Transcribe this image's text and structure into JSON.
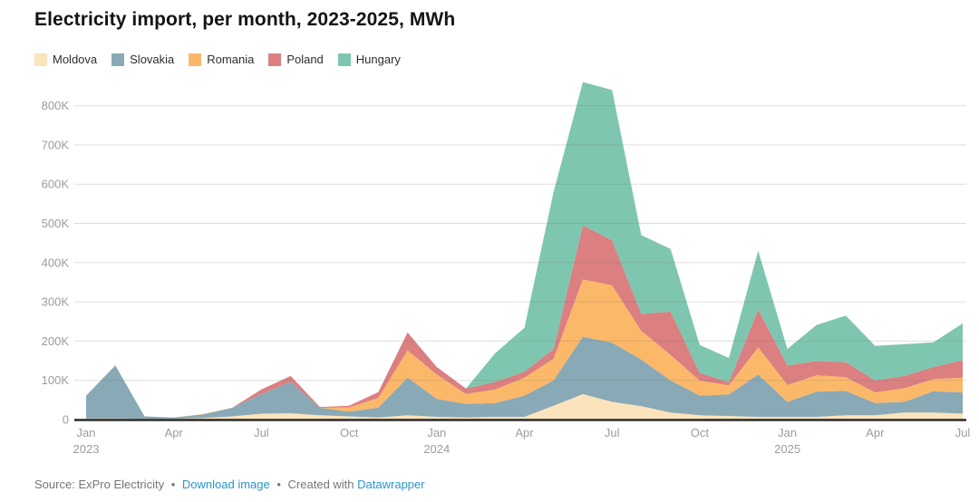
{
  "header": {
    "title": "Electricity import, per month, 2023-2025, MWh"
  },
  "footer": {
    "source_prefix": "Source:",
    "source": "ExPro Electricity",
    "separator": "•",
    "download_label": "Download image",
    "created_prefix": "Created with",
    "brand": "Datawrapper"
  },
  "colors": {
    "title": "#141414",
    "tick_label": "#9c9c9c",
    "grid": "rgba(110,110,110,0.22)",
    "axis": "#2b2b2b",
    "footer_text": "#757575",
    "link": "#2b96cc",
    "background": "#ffffff"
  },
  "chart_data": {
    "type": "area",
    "stacked": true,
    "title": "Electricity import, per month, 2023-2025, MWh",
    "unit": "MWh",
    "grid": true,
    "legend_position": "top-left",
    "ylim": [
      0,
      860000
    ],
    "x": [
      "Jan 2023",
      "Feb 2023",
      "Mar 2023",
      "Apr 2023",
      "May 2023",
      "Jun 2023",
      "Jul 2023",
      "Aug 2023",
      "Sep 2023",
      "Oct 2023",
      "Nov 2023",
      "Dec 2023",
      "Jan 2024",
      "Feb 2024",
      "Mar 2024",
      "Apr 2024",
      "May 2024",
      "Jun 2024",
      "Jul 2024",
      "Aug 2024",
      "Sep 2024",
      "Oct 2024",
      "Nov 2024",
      "Dec 2024",
      "Jan 2025",
      "Feb 2025",
      "Mar 2025",
      "Apr 2025",
      "May 2025",
      "Jun 2025",
      "Jul 2025"
    ],
    "series": [
      {
        "name": "Moldova",
        "color": "#fbe3bb",
        "values": [
          3000,
          3000,
          2000,
          2000,
          4000,
          8000,
          15000,
          16000,
          11000,
          8000,
          5000,
          11000,
          7000,
          5000,
          7000,
          7000,
          35000,
          65000,
          45000,
          34000,
          18000,
          11000,
          9000,
          7000,
          7000,
          7000,
          11000,
          11000,
          18000,
          18000,
          15000
        ]
      },
      {
        "name": "Slovakia",
        "color": "#8aa9b6",
        "values": [
          58000,
          135000,
          6000,
          3000,
          9000,
          22000,
          50000,
          80000,
          19000,
          12000,
          25000,
          96000,
          46000,
          35000,
          35000,
          54000,
          65000,
          146000,
          151000,
          119000,
          82000,
          50000,
          55000,
          108000,
          38000,
          64000,
          62000,
          31000,
          27000,
          54000,
          54000
        ]
      },
      {
        "name": "Romania",
        "color": "#fbb869",
        "values": [
          0,
          0,
          0,
          0,
          1000,
          0,
          0,
          0,
          0,
          11000,
          25000,
          69000,
          62000,
          25000,
          35000,
          46000,
          55000,
          146000,
          146000,
          73000,
          65000,
          38000,
          23000,
          69000,
          43000,
          42000,
          35000,
          27000,
          35000,
          31000,
          38000
        ]
      },
      {
        "name": "Poland",
        "color": "#db7f80",
        "values": [
          0,
          0,
          0,
          0,
          0,
          0,
          12000,
          15000,
          2000,
          4000,
          15000,
          46000,
          19000,
          14000,
          19000,
          15000,
          25000,
          138000,
          115000,
          43000,
          110000,
          20000,
          8000,
          96000,
          50000,
          36000,
          38000,
          31000,
          31000,
          31000,
          44000
        ]
      },
      {
        "name": "Hungary",
        "color": "#7fc6b0",
        "values": [
          0,
          0,
          0,
          0,
          0,
          0,
          0,
          0,
          0,
          0,
          0,
          0,
          0,
          0,
          73000,
          112000,
          400000,
          365000,
          383000,
          201000,
          160000,
          71000,
          62000,
          150000,
          42000,
          92000,
          119000,
          88000,
          81000,
          63000,
          94000
        ]
      }
    ],
    "y_ticks": [
      {
        "value": 0,
        "label": "0"
      },
      {
        "value": 100000,
        "label": "100K"
      },
      {
        "value": 200000,
        "label": "200K"
      },
      {
        "value": 300000,
        "label": "300K"
      },
      {
        "value": 400000,
        "label": "400K"
      },
      {
        "value": 500000,
        "label": "500K"
      },
      {
        "value": 600000,
        "label": "600K"
      },
      {
        "value": 700000,
        "label": "700K"
      },
      {
        "value": 800000,
        "label": "800K"
      }
    ],
    "x_ticks": [
      {
        "index": 0,
        "label": "Jan",
        "year": "2023"
      },
      {
        "index": 3,
        "label": "Apr"
      },
      {
        "index": 6,
        "label": "Jul"
      },
      {
        "index": 9,
        "label": "Oct"
      },
      {
        "index": 12,
        "label": "Jan",
        "year": "2024"
      },
      {
        "index": 15,
        "label": "Apr"
      },
      {
        "index": 18,
        "label": "Jul"
      },
      {
        "index": 21,
        "label": "Oct"
      },
      {
        "index": 24,
        "label": "Jan",
        "year": "2025"
      },
      {
        "index": 27,
        "label": "Apr"
      },
      {
        "index": 30,
        "label": "Jul"
      }
    ]
  }
}
